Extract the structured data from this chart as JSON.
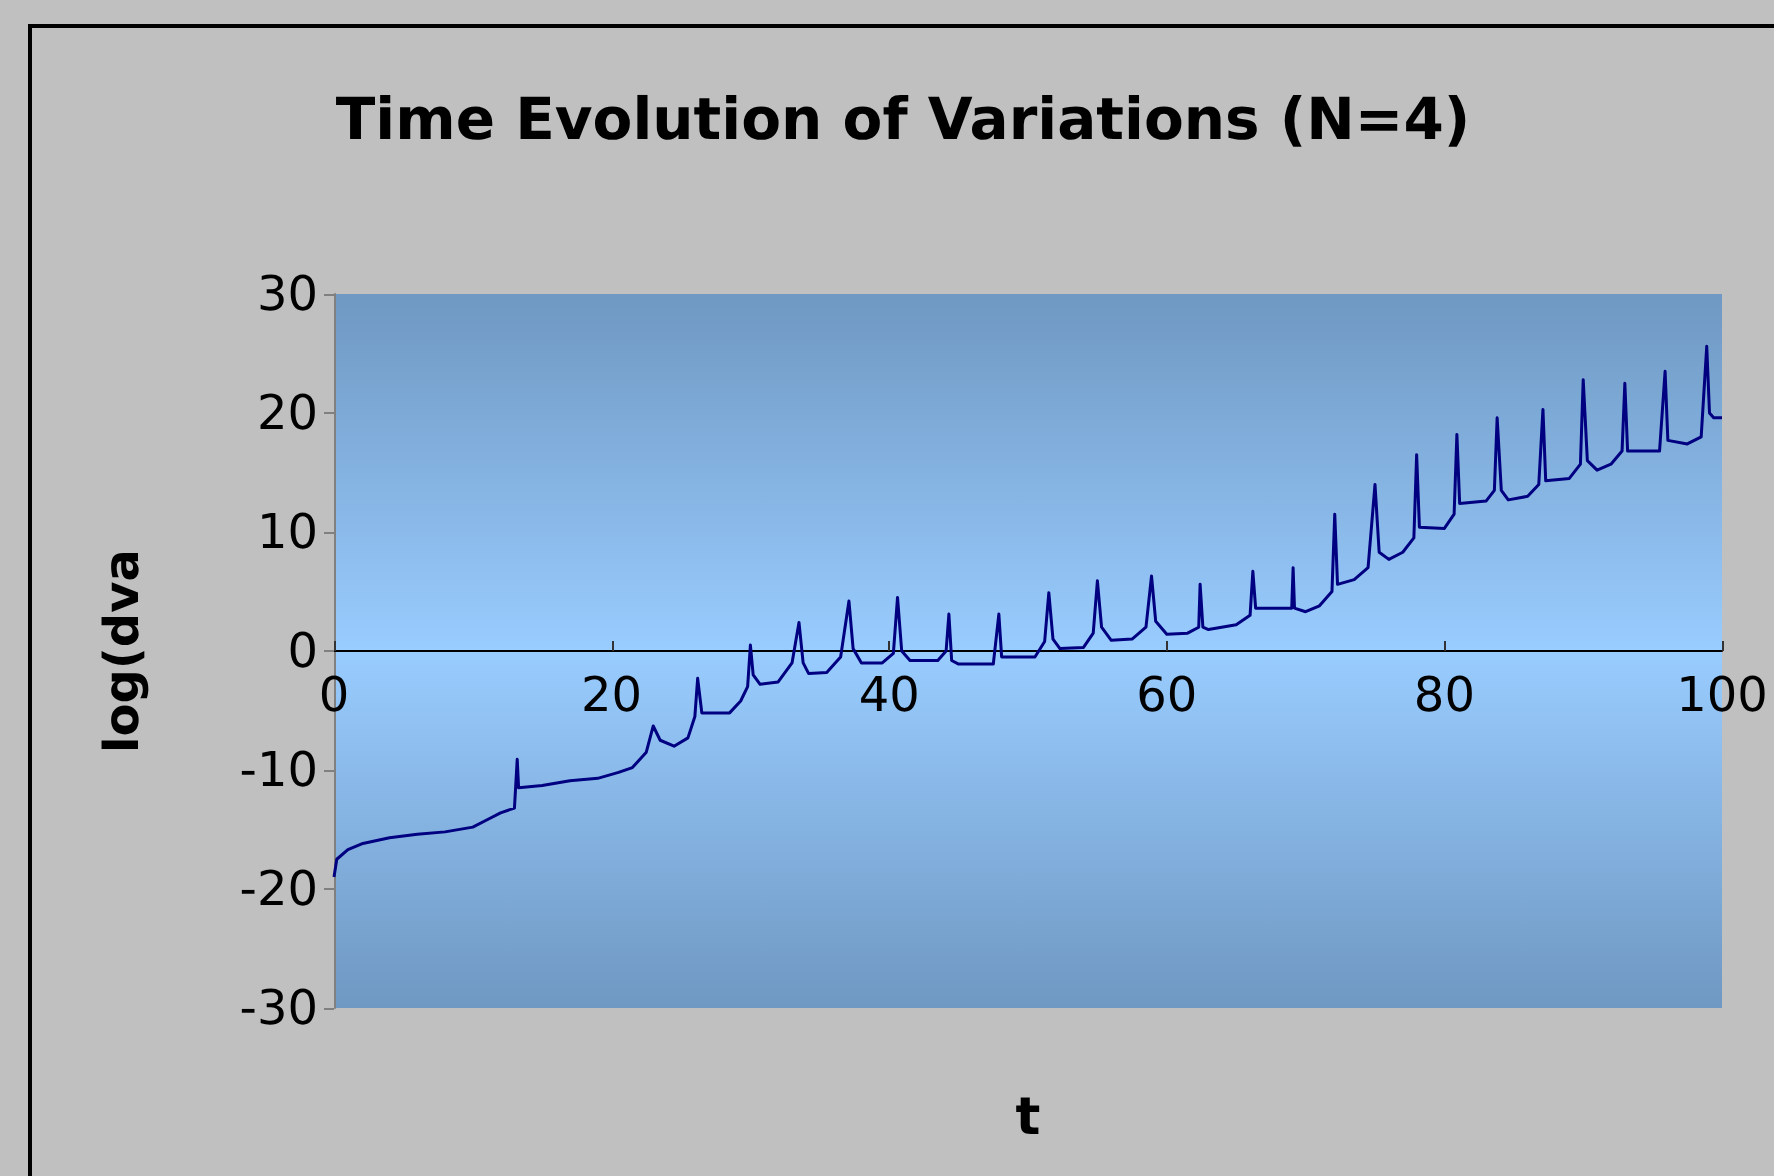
{
  "chart_data": {
    "type": "line",
    "title": "Time Evolution of Variations (N=4)",
    "xlabel": "t",
    "ylabel": "log(dva",
    "xlim": [
      0,
      100
    ],
    "xticks": [
      0,
      20,
      40,
      60,
      80,
      100
    ],
    "ylim": [
      -30,
      30
    ],
    "yticks": [
      -30,
      -20,
      -10,
      0,
      10,
      20,
      30
    ],
    "grid": false,
    "marker": "none",
    "line_style": "solid",
    "series": [
      {
        "color": "#000080",
        "x": [
          0,
          0.2,
          1,
          2,
          4,
          6,
          8,
          10,
          11,
          12,
          13,
          13.2,
          13.3,
          15,
          17,
          19,
          20.5,
          21.5,
          22.5,
          23,
          23.5,
          24.5,
          25.5,
          26,
          26.2,
          26.5,
          28.5,
          29.3,
          29.8,
          30,
          30.2,
          30.7,
          32,
          33,
          33.5,
          33.8,
          34.2,
          35.5,
          36.5,
          37.1,
          37.4,
          38,
          39.5,
          40.3,
          40.6,
          40.9,
          41.5,
          43.5,
          44.1,
          44.3,
          44.5,
          45,
          47.5,
          47.9,
          48.1,
          50.5,
          51.2,
          51.5,
          51.8,
          52.3,
          54,
          54.7,
          55,
          55.3,
          56,
          57.5,
          58.5,
          58.9,
          59.2,
          60,
          61.5,
          62.3,
          62.4,
          62.6,
          63,
          65,
          66,
          66.2,
          66.4,
          69,
          69.1,
          69.2,
          70,
          71,
          71.9,
          72.1,
          72.3,
          73.5,
          74.5,
          75,
          75.3,
          76,
          77,
          77.8,
          78,
          78.2,
          80,
          80.7,
          80.9,
          81.1,
          83,
          83.6,
          83.8,
          84.1,
          84.6,
          86,
          86.8,
          87.1,
          87.3,
          89,
          89.8,
          90,
          90.3,
          91,
          92,
          92.8,
          93,
          93.2,
          95.5,
          95.9,
          96.1,
          97.5,
          98.5,
          98.9,
          99.1,
          99.4,
          100
        ],
        "values": [
          -19,
          -17.5,
          -16.7,
          -16.2,
          -15.7,
          -15.4,
          -15.2,
          -14.8,
          -14.2,
          -13.6,
          -13.2,
          -9.1,
          -11.5,
          -11.3,
          -10.9,
          -10.7,
          -10.2,
          -9.8,
          -8.5,
          -6.3,
          -7.5,
          -8,
          -7.3,
          -5.5,
          -2.3,
          -5.2,
          -5.2,
          -4.2,
          -3,
          0.5,
          -2,
          -2.8,
          -2.6,
          -1,
          2.4,
          -1,
          -1.9,
          -1.8,
          -0.5,
          4.2,
          0.2,
          -1,
          -1,
          -0.2,
          4.5,
          0,
          -0.8,
          -0.8,
          0,
          3.1,
          -0.8,
          -1.1,
          -1.1,
          3.1,
          -0.5,
          -0.5,
          0.8,
          4.9,
          1,
          0.2,
          0.3,
          1.5,
          5.9,
          2,
          0.9,
          1,
          2,
          6.3,
          2.5,
          1.4,
          1.5,
          2,
          5.6,
          2,
          1.8,
          2.2,
          3,
          6.7,
          3.6,
          3.6,
          7,
          3.6,
          3.3,
          3.8,
          5,
          11.5,
          5.6,
          6,
          7,
          14,
          8.3,
          7.7,
          8.3,
          9.5,
          16.5,
          10.4,
          10.3,
          11.5,
          18.2,
          12.4,
          12.6,
          13.5,
          19.6,
          13.5,
          12.7,
          13,
          14,
          20.3,
          14.3,
          14.5,
          15.7,
          22.8,
          16,
          15.2,
          15.7,
          16.8,
          22.5,
          16.8,
          16.8,
          23.5,
          17.7,
          17.4,
          18,
          25.6,
          20,
          19.6,
          19.6
        ]
      }
    ]
  }
}
